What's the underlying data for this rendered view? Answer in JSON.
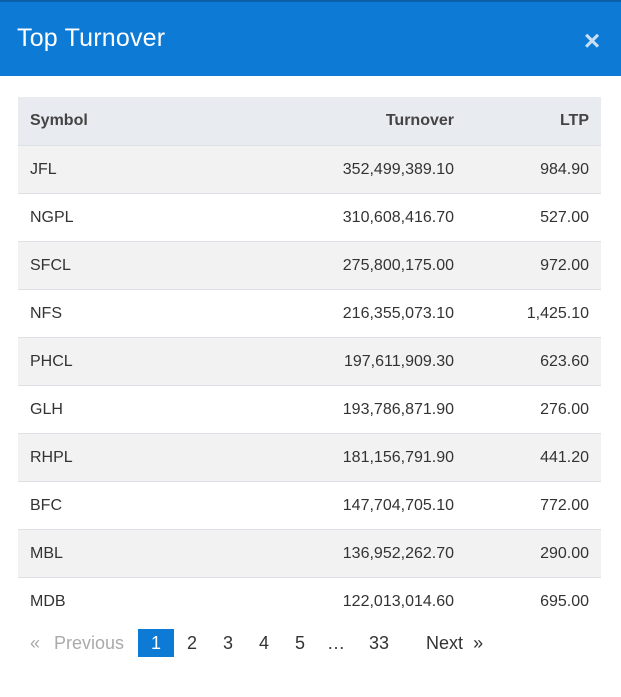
{
  "header": {
    "title": "Top Turnover",
    "close_symbol": "×",
    "color": "#0d7ad6"
  },
  "table": {
    "columns": [
      "Symbol",
      "Turnover",
      "LTP"
    ],
    "rows": [
      {
        "symbol": "JFL",
        "turnover": "352,499,389.10",
        "ltp": "984.90"
      },
      {
        "symbol": "NGPL",
        "turnover": "310,608,416.70",
        "ltp": "527.00"
      },
      {
        "symbol": "SFCL",
        "turnover": "275,800,175.00",
        "ltp": "972.00"
      },
      {
        "symbol": "NFS",
        "turnover": "216,355,073.10",
        "ltp": "1,425.10"
      },
      {
        "symbol": "PHCL",
        "turnover": "197,611,909.30",
        "ltp": "623.60"
      },
      {
        "symbol": "GLH",
        "turnover": "193,786,871.90",
        "ltp": "276.00"
      },
      {
        "symbol": "RHPL",
        "turnover": "181,156,791.90",
        "ltp": "441.20"
      },
      {
        "symbol": "BFC",
        "turnover": "147,704,705.10",
        "ltp": "772.00"
      },
      {
        "symbol": "MBL",
        "turnover": "136,952,262.70",
        "ltp": "290.00"
      },
      {
        "symbol": "MDB",
        "turnover": "122,013,014.60",
        "ltp": "695.00"
      }
    ]
  },
  "pagination": {
    "prev_arrow": "«",
    "prev_label": "Previous",
    "pages": [
      "1",
      "2",
      "3",
      "4",
      "5"
    ],
    "active_page": "1",
    "ellipsis": "…",
    "last_page": "33",
    "next_label": "Next",
    "next_arrow": "»"
  }
}
